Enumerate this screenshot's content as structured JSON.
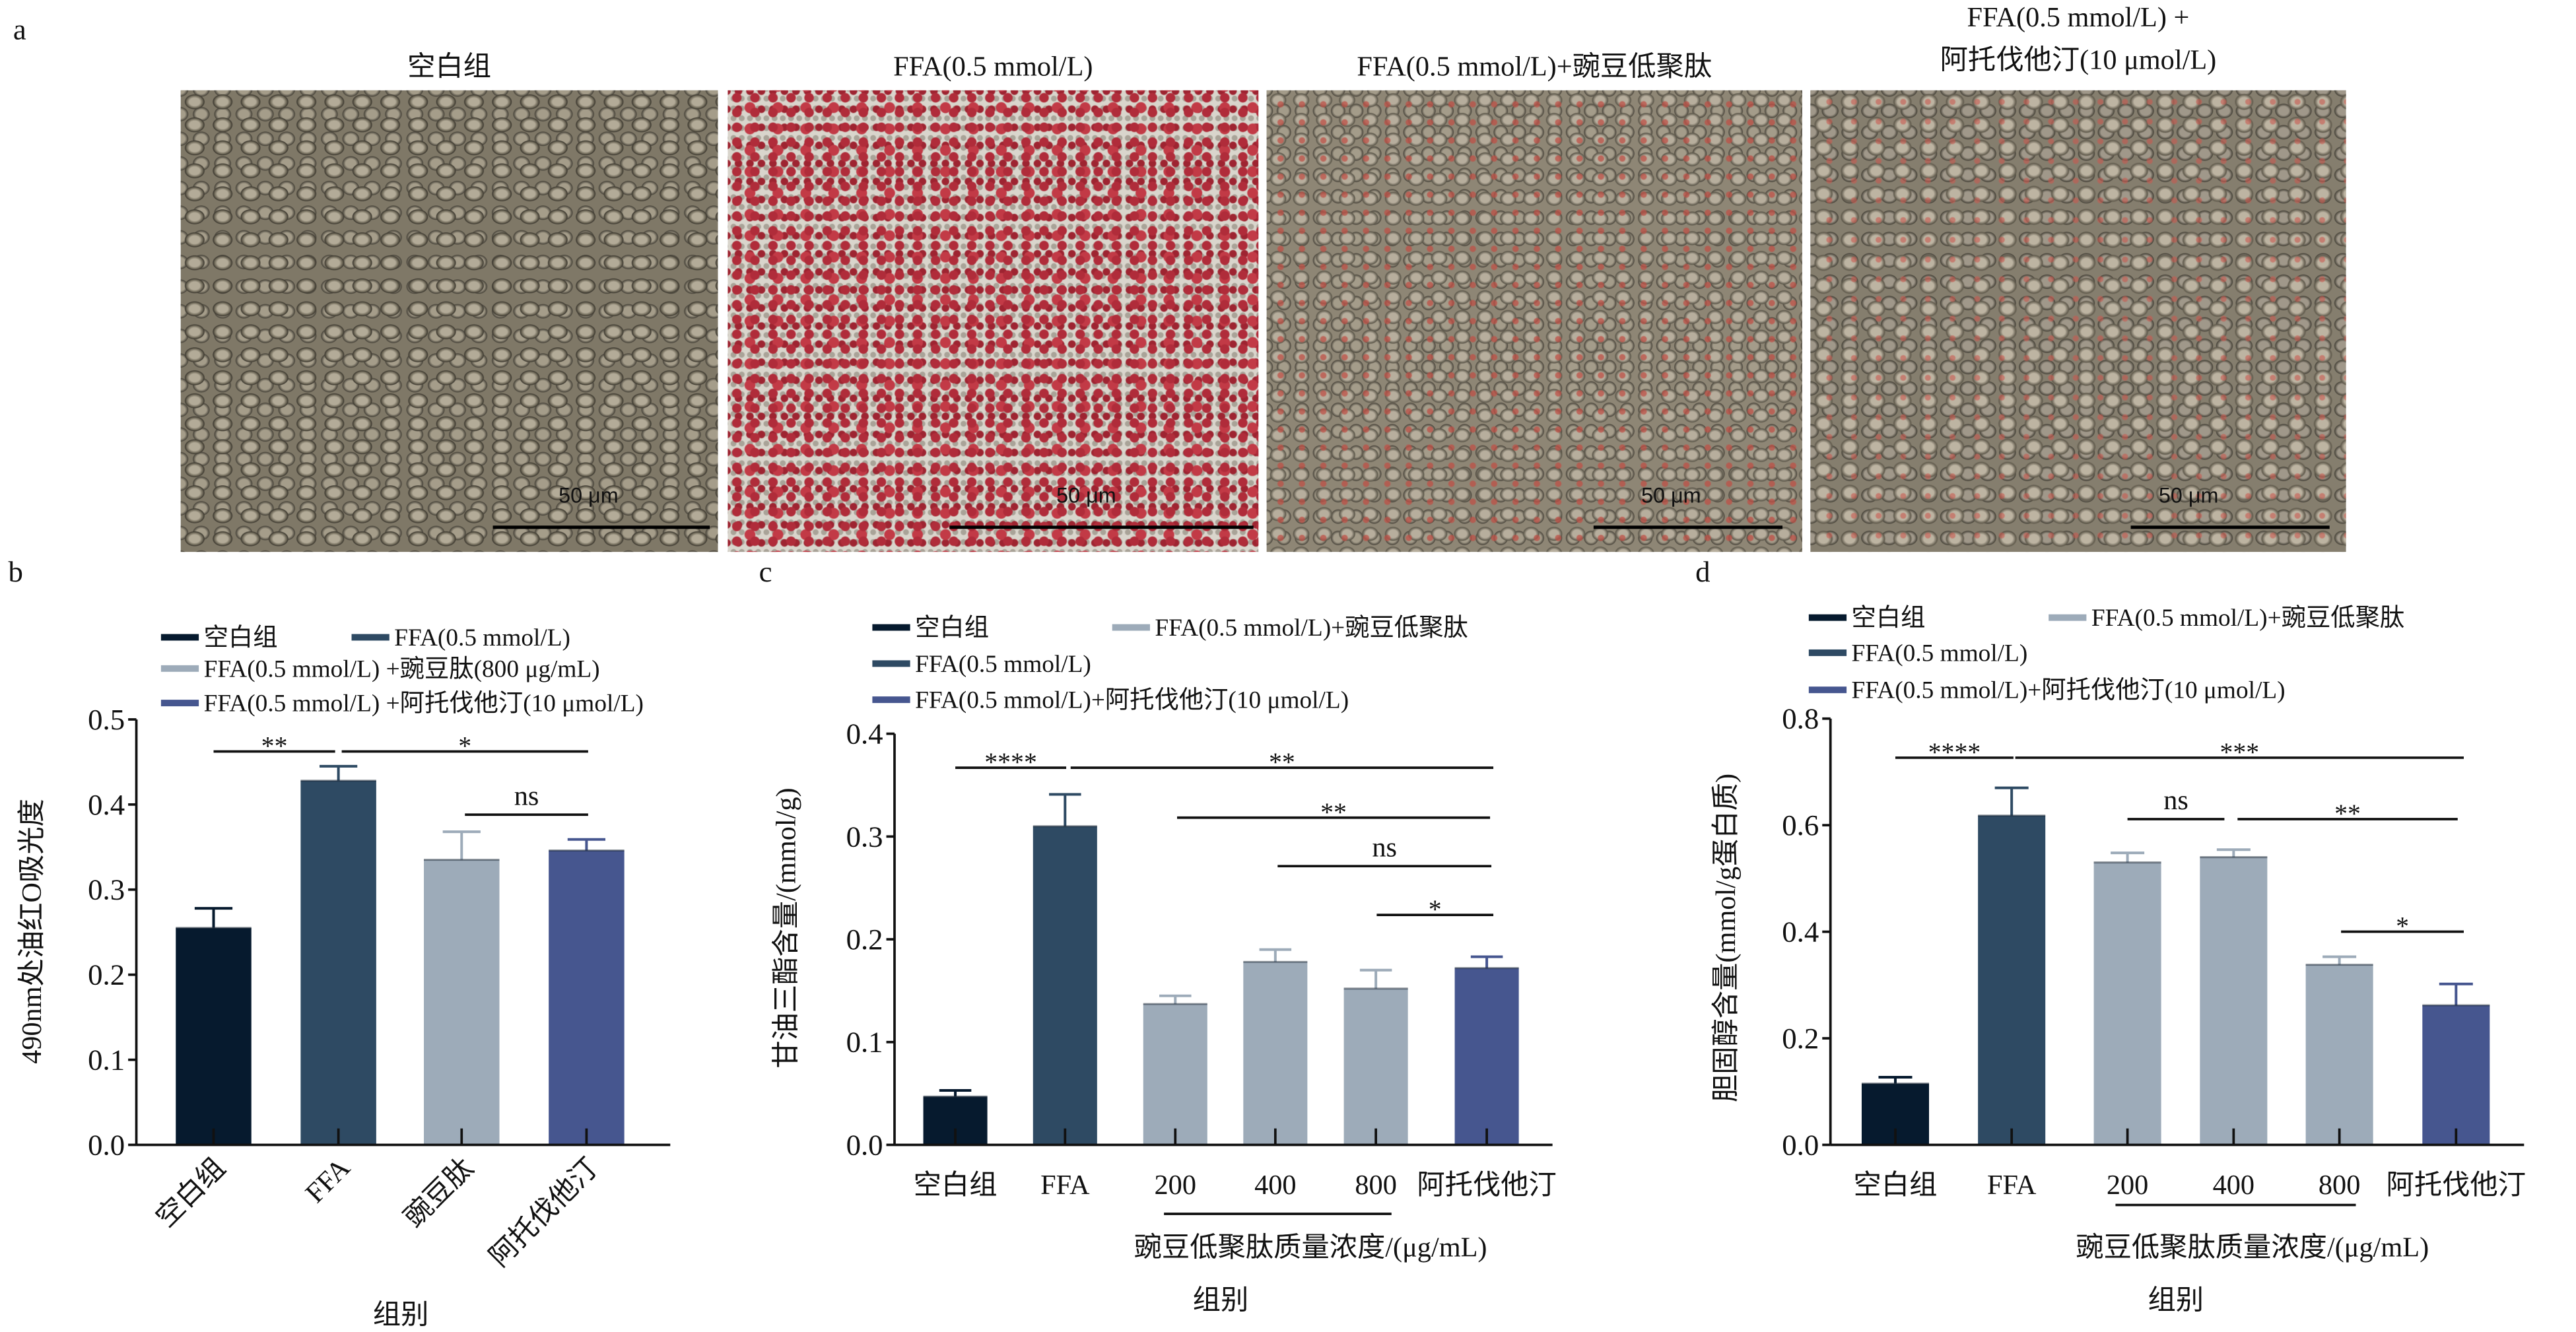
{
  "panel_a": {
    "label": "a",
    "images": [
      {
        "title": "空白组",
        "scale_bar": "50 μm"
      },
      {
        "title": "FFA(0.5 mmol/L)",
        "scale_bar": "50 μm"
      },
      {
        "title": "FFA(0.5 mmol/L)+豌豆低聚肽",
        "scale_bar": "50 μm"
      },
      {
        "title_line1": "FFA(0.5 mmol/L) +",
        "title_line2": "阿托伐他汀(10 μmol/L)",
        "scale_bar": "50 μm"
      }
    ]
  },
  "colors": {
    "blank": "#061a2e",
    "ffa": "#2e4a63",
    "peptide": "#9dabb9",
    "atorvastatin": "#46568f"
  },
  "chart_data": [
    {
      "panel": "b",
      "type": "bar",
      "ylabel": "490nm处油红O吸光度",
      "xlabel": "组别",
      "ylim": [
        0,
        0.5
      ],
      "y_ticks": [
        "0.0",
        "0.1",
        "0.2",
        "0.3",
        "0.4",
        "0.5"
      ],
      "categories": [
        "空白组",
        "FFA",
        "豌豆肽",
        "阿托伐他汀"
      ],
      "values": [
        0.255,
        0.428,
        0.335,
        0.346
      ],
      "errors": [
        0.023,
        0.017,
        0.033,
        0.013
      ],
      "bar_legend_index": [
        0,
        1,
        2,
        3
      ],
      "legend": [
        {
          "label": "空白组",
          "color": "#061a2e"
        },
        {
          "label": "FFA(0.5 mmol/L)",
          "color": "#2e4a63"
        },
        {
          "label": "FFA(0.5 mmol/L) +豌豆肽(800 μg/mL)",
          "color": "#9dabb9"
        },
        {
          "label": "FFA(0.5 mmol/L) +阿托伐他汀(10 μmol/L)",
          "color": "#46568f"
        }
      ],
      "significance": [
        {
          "from": 0,
          "to": 1,
          "label": "**"
        },
        {
          "from": 1,
          "to": 3,
          "label": "*"
        },
        {
          "from": 2,
          "to": 3,
          "label": "ns"
        }
      ]
    },
    {
      "panel": "c",
      "type": "bar",
      "ylabel": "甘油三酯含量/(mmol/g)",
      "xlabel": "组别",
      "group_label": "豌豆低聚肽质量浓度/(μg/mL)",
      "ylim": [
        0,
        0.4
      ],
      "y_ticks": [
        "0.0",
        "0.1",
        "0.2",
        "0.3",
        "0.4"
      ],
      "categories": [
        "空白组",
        "FFA",
        "200",
        "400",
        "800",
        "阿托伐他汀"
      ],
      "values": [
        0.047,
        0.31,
        0.137,
        0.178,
        0.152,
        0.172
      ],
      "errors": [
        0.006,
        0.031,
        0.008,
        0.012,
        0.018,
        0.011
      ],
      "bar_legend_index": [
        0,
        1,
        2,
        2,
        2,
        3
      ],
      "legend": [
        {
          "label": "空白组",
          "color": "#061a2e"
        },
        {
          "label": "FFA(0.5 mmol/L)",
          "color": "#2e4a63"
        },
        {
          "label": "FFA(0.5 mmol/L)+豌豆低聚肽",
          "color": "#9dabb9"
        },
        {
          "label": "FFA(0.5 mmol/L)+阿托伐他汀(10 μmol/L)",
          "color": "#46568f"
        }
      ],
      "significance": [
        {
          "from": 0,
          "to": 1,
          "label": "****"
        },
        {
          "from": 1,
          "to": 5,
          "label": "**"
        },
        {
          "from": 2,
          "to": 5,
          "label": "**"
        },
        {
          "from": 3,
          "to": 5,
          "label": "ns"
        },
        {
          "from": 4,
          "to": 5,
          "label": "*"
        }
      ]
    },
    {
      "panel": "d",
      "type": "bar",
      "ylabel": "胆固醇含量(mmol/g蛋白质)",
      "xlabel": "组别",
      "group_label": "豌豆低聚肽质量浓度/(μg/mL)",
      "ylim": [
        0,
        0.8
      ],
      "y_ticks": [
        "0.0",
        "0.2",
        "0.4",
        "0.6",
        "0.8"
      ],
      "categories": [
        "空白组",
        "FFA",
        "200",
        "400",
        "800",
        "阿托伐他汀"
      ],
      "values": [
        0.115,
        0.618,
        0.53,
        0.54,
        0.338,
        0.262
      ],
      "errors": [
        0.012,
        0.052,
        0.018,
        0.014,
        0.015,
        0.04
      ],
      "bar_legend_index": [
        0,
        1,
        2,
        2,
        2,
        3
      ],
      "legend": [
        {
          "label": "空白组",
          "color": "#061a2e"
        },
        {
          "label": "FFA(0.5 mmol/L)",
          "color": "#2e4a63"
        },
        {
          "label": "FFA(0.5 mmol/L)+豌豆低聚肽",
          "color": "#9dabb9"
        },
        {
          "label": "FFA(0.5 mmol/L)+阿托伐他汀(10 μmol/L)",
          "color": "#46568f"
        }
      ],
      "significance": [
        {
          "from": 0,
          "to": 1,
          "label": "****"
        },
        {
          "from": 1,
          "to": 5,
          "label": "***"
        },
        {
          "from": 2,
          "to": 3,
          "label": "ns"
        },
        {
          "from": 3,
          "to": 5,
          "label": "**"
        },
        {
          "from": 4,
          "to": 5,
          "label": "*"
        }
      ]
    }
  ]
}
